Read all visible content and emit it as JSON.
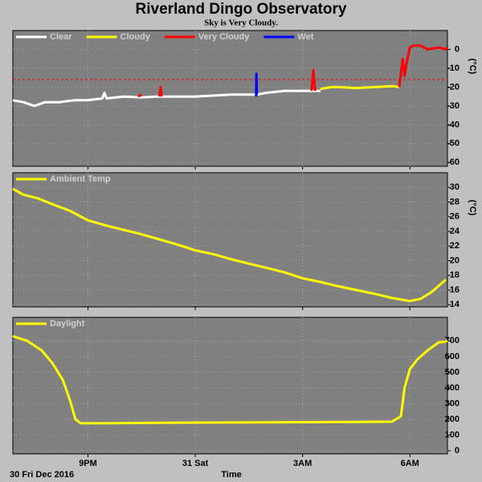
{
  "chart_data": [
    {
      "type": "line",
      "title": "Riverland Dingo Observatory",
      "subtitle": "Sky is Very Cloudy.",
      "ylabel": "(°C)",
      "ylim": [
        -62,
        10
      ],
      "yticks": [
        0,
        -10,
        -20,
        -30,
        -40,
        -50,
        -60
      ],
      "xlim": [
        18.9,
        31.05
      ],
      "threshold": -16,
      "threshold_color": "#ff0000",
      "grid": true,
      "series": [
        {
          "name": "Clear",
          "color": "#ffffff",
          "x": [
            18.9,
            19.2,
            19.5,
            19.8,
            20.2,
            20.6,
            21,
            21.4,
            21.46,
            21.52,
            22,
            22.5,
            22.9,
            23.2,
            23.7,
            24,
            24.5,
            25,
            25.5,
            25.7,
            26,
            26.5,
            27,
            27.3,
            27.5
          ],
          "values": [
            -27,
            -28,
            -30,
            -28,
            -28,
            -27,
            -27,
            -26,
            -23,
            -26,
            -25,
            -25.5,
            -25,
            -25,
            -25,
            -25,
            -24.5,
            -24,
            -24,
            -24,
            -23,
            -22,
            -22,
            -22,
            -22
          ]
        },
        {
          "name": "Cloudy",
          "color": "#ffff00",
          "x": [
            27.5,
            27.8,
            28,
            28.5,
            29,
            29.5,
            29.7
          ],
          "values": [
            -21,
            -20,
            -20,
            -20.5,
            -20,
            -19.5,
            -20
          ]
        },
        {
          "name": "Very Cloudy",
          "color": "#ff0000",
          "x": [
            22.4,
            22.5,
            22.7,
            23.0,
            23.03,
            23.06,
            25,
            27.25,
            27.3,
            27.35,
            28,
            29.7,
            29.8,
            29.85,
            29.9,
            30,
            30.1,
            30.3,
            30.5,
            30.8,
            31,
            31.05
          ],
          "values": [
            -25,
            -24,
            null,
            -25,
            -20,
            -25,
            null,
            -22,
            -11,
            -22,
            null,
            -20,
            -5,
            -14,
            -8,
            1,
            2,
            2,
            0,
            1,
            0,
            1
          ]
        },
        {
          "name": "Wet",
          "color": "#0000ff",
          "x": [
            25.7,
            25.71,
            25.72
          ],
          "values": [
            -25,
            -13,
            -24
          ]
        }
      ]
    },
    {
      "type": "line",
      "ylabel": "(°C)",
      "ylim": [
        13.7,
        32
      ],
      "yticks": [
        30,
        28,
        26,
        24,
        22,
        20,
        18,
        16,
        14
      ],
      "xlim": [
        18.9,
        31.05
      ],
      "grid": true,
      "series": [
        {
          "name": "Ambient Temp",
          "color": "#ffff00",
          "x": [
            18.9,
            19.2,
            19.6,
            20,
            20.5,
            21,
            21.5,
            22,
            22.5,
            23,
            23.5,
            24,
            24.5,
            25,
            25.5,
            26,
            26.5,
            27,
            27.5,
            28,
            28.5,
            29,
            29.5,
            30,
            30.3,
            30.6,
            31
          ],
          "values": [
            29.8,
            29,
            28.5,
            27.7,
            26.8,
            25.5,
            24.8,
            24.2,
            23.6,
            22.9,
            22.2,
            21.4,
            20.9,
            20.2,
            19.6,
            19,
            18.4,
            17.6,
            17.1,
            16.5,
            16,
            15.5,
            14.9,
            14.5,
            14.8,
            15.7,
            17.4
          ]
        }
      ]
    },
    {
      "type": "line",
      "xlabel": "Time",
      "annotation": "30 Fri Dec 2016",
      "ylim": [
        -20,
        850
      ],
      "yticks": [
        700,
        600,
        500,
        400,
        300,
        200,
        100,
        0
      ],
      "xlim": [
        18.9,
        31.05
      ],
      "grid": true,
      "xticks": [
        {
          "value": 21,
          "label": "9PM"
        },
        {
          "value": 24,
          "label": "31 Sat"
        },
        {
          "value": 27,
          "label": "3AM"
        },
        {
          "value": 30,
          "label": "6AM"
        }
      ],
      "series": [
        {
          "name": "Daylight",
          "color": "#ffff00",
          "x": [
            18.9,
            19.3,
            19.7,
            20,
            20.3,
            20.5,
            20.65,
            20.8,
            21.5,
            23,
            25,
            27,
            28.5,
            29.5,
            29.75,
            29.85,
            30,
            30.2,
            30.5,
            30.8,
            31,
            31.05
          ],
          "values": [
            730,
            700,
            640,
            560,
            450,
            320,
            200,
            175,
            175,
            178,
            180,
            182,
            183,
            185,
            220,
            400,
            520,
            580,
            640,
            690,
            695,
            700
          ]
        }
      ]
    }
  ]
}
